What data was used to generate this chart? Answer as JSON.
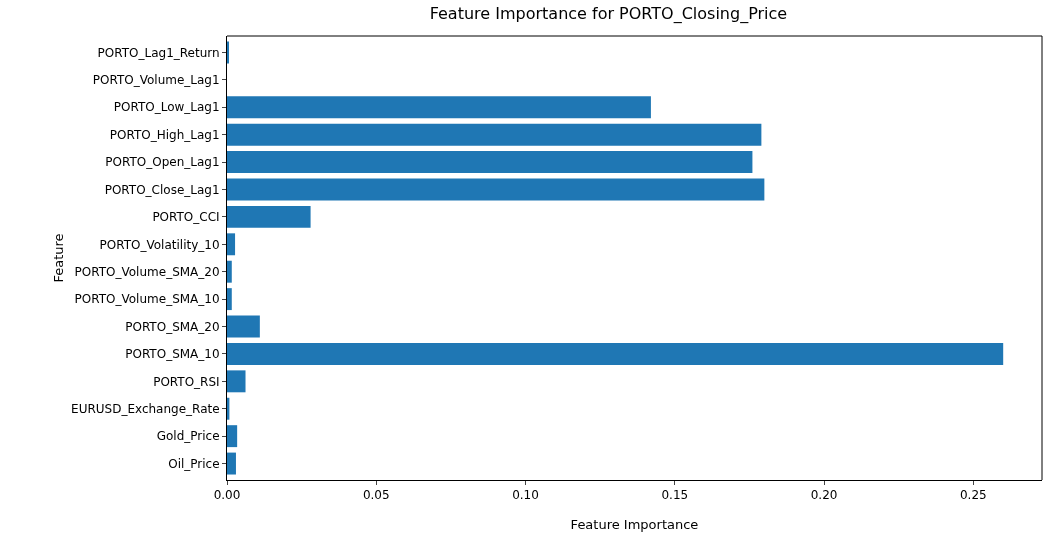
{
  "chart_data": {
    "type": "bar",
    "orientation": "horizontal",
    "title": "Feature Importance for PORTO_Closing_Price",
    "xlabel": "Feature Importance",
    "ylabel": "Feature",
    "categories": [
      "PORTO_Lag1_Return",
      "PORTO_Volume_Lag1",
      "PORTO_Low_Lag1",
      "PORTO_High_Lag1",
      "PORTO_Open_Lag1",
      "PORTO_Close_Lag1",
      "PORTO_CCI",
      "PORTO_Volatility_10",
      "PORTO_Volume_SMA_20",
      "PORTO_Volume_SMA_10",
      "PORTO_SMA_20",
      "PORTO_SMA_10",
      "PORTO_RSI",
      "EURUSD_Exchange_Rate",
      "Gold_Price",
      "Oil_Price"
    ],
    "values": [
      0.0005,
      0,
      0.142,
      0.179,
      0.176,
      0.18,
      0.028,
      0.0027,
      0.0016,
      0.0016,
      0.011,
      0.26,
      0.0062,
      0.0008,
      0.0034,
      0.003
    ],
    "color": "#1f77b4",
    "xlim": [
      0,
      0.273
    ],
    "xticks": [
      {
        "value": 0,
        "label": "0.00"
      },
      0.05,
      {
        "value": 0.1,
        "label": "0.10"
      },
      0.15,
      {
        "value": 0.2,
        "label": "0.20"
      },
      0.25
    ],
    "grid": false,
    "legend": false
  }
}
